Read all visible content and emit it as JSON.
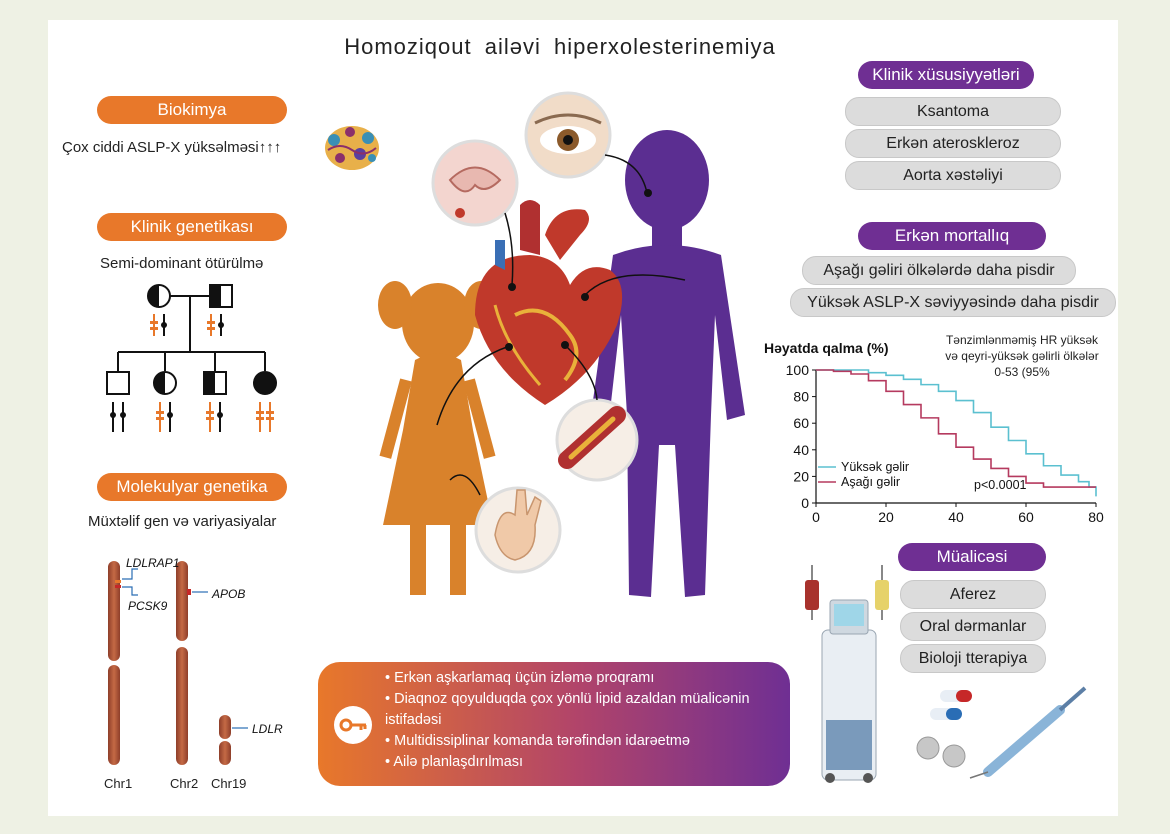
{
  "title": "Homoziqout ailəvi hiperxolesterinemiya",
  "biochem": {
    "label": "Biokimya",
    "text": "Çox ciddi ASLP-X yüksəlməsi↑↑↑"
  },
  "clinical_genetics": {
    "label": "Klinik genetikası",
    "text": "Semi-dominant ötürülmə"
  },
  "molecular_genetics": {
    "label": "Molekulyar genetika",
    "text": "Müxtəlif gen və variyasiyalar",
    "genes": {
      "ldlrap1": "LDLRAP1",
      "pcsk9": "PCSK9",
      "apob": "APOB",
      "ldlr": "LDLR"
    },
    "chromosomes": [
      "Chr1",
      "Chr2",
      "Chr19"
    ]
  },
  "clinical_features": {
    "label": "Klinik xüsusiyyətləri",
    "items": [
      "Ksantoma",
      "Erkən ateroskleroz",
      "Aorta xəstəliyi"
    ]
  },
  "mortality": {
    "label": "Erkən mortallıq",
    "items": [
      "Aşağı gəliri ölkələrdə daha pisdir",
      "Yüksək ASLP-X səviyyəsində daha pisdir"
    ]
  },
  "treatment": {
    "label": "Müalicəsi",
    "items": [
      "Aferez",
      "Oral dərmanlar",
      "Bioloji tterapiya"
    ]
  },
  "key_points": [
    "Erkən aşkarlamaq üçün izləmə proqramı",
    "Diaqnoz qoyulduqda çox yönlü lipid azaldan müalicənin istifadəsi",
    "Multidissiplinar komanda tərəfindən idarəetmə",
    "Ailə planlaşdırılması"
  ],
  "chart_data": {
    "type": "line",
    "ylabel": "Həyatda qalma (%)",
    "annotation": "Tənzimlənməmiş HR yüksək və qeyri-yüksək gəlirli ölkələr 0-53 (95%",
    "pvalue": "p<0.0001",
    "xlim": [
      0,
      80
    ],
    "ylim": [
      0,
      100
    ],
    "xticks": [
      0,
      20,
      40,
      60,
      80
    ],
    "yticks": [
      0,
      20,
      40,
      60,
      80,
      100
    ],
    "series": [
      {
        "name": "Yüksək gəlir",
        "color": "#5bc0d0",
        "x": [
          0,
          10,
          15,
          20,
          25,
          30,
          35,
          40,
          45,
          50,
          55,
          60,
          65,
          70,
          75,
          78,
          80
        ],
        "y": [
          100,
          100,
          98,
          96,
          93,
          89,
          84,
          77,
          68,
          57,
          47,
          37,
          28,
          21,
          16,
          12,
          5
        ]
      },
      {
        "name": "Aşağı gəlir",
        "color": "#b53a5f",
        "x": [
          0,
          5,
          10,
          15,
          20,
          25,
          30,
          35,
          40,
          45,
          50,
          55,
          60,
          65,
          70,
          75,
          80
        ],
        "y": [
          100,
          99,
          97,
          92,
          84,
          74,
          64,
          52,
          42,
          33,
          26,
          20,
          15,
          12,
          12,
          12,
          12
        ]
      }
    ]
  },
  "colors": {
    "orange": "#e8782a",
    "purple": "#6f2f93",
    "gray": "#dcdcdc"
  }
}
